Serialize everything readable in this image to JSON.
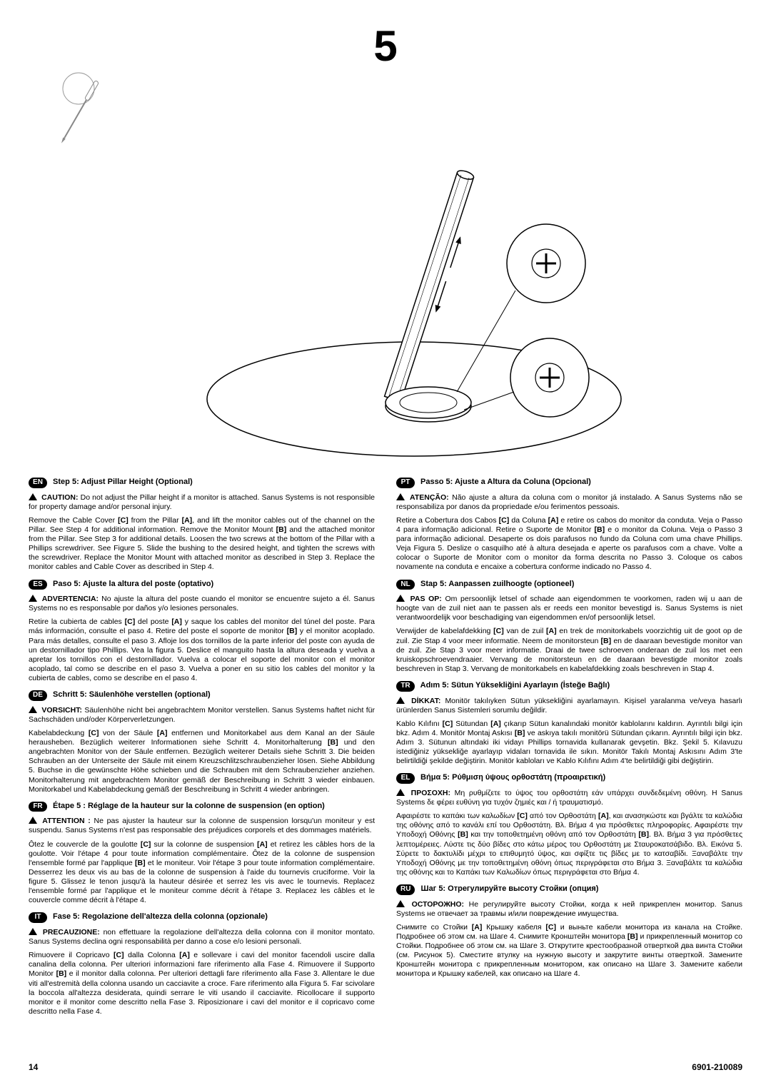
{
  "step_number": "5",
  "footer": {
    "page": "14",
    "doc": "6901-210089"
  },
  "sections": [
    {
      "code": "EN",
      "heading": "Step 5: Adjust Pillar Height (Optional)",
      "warn_label": "CAUTION:",
      "warn_text": "Do not adjust the Pillar height if a monitor is attached. Sanus Systems is not responsible for property damage and/or personal injury.",
      "body": "Remove the Cable Cover [C] from the Pillar [A], and lift the monitor cables out of the channel on the Pillar. See Step 4 for additional information. Remove the Monitor Mount [B] and the attached monitor from the Pillar. See Step 3 for additional details. Loosen the two screws at the bottom of the Pillar with a Phillips screwdriver. See Figure 5. Slide the bushing to the desired height, and tighten the screws with the screwdriver. Replace the Monitor Mount with attached monitor as described in Step 3.  Replace the monitor cables and Cable Cover as described in Step 4."
    },
    {
      "code": "ES",
      "heading": "Paso 5: Ajuste la altura del poste (optativo)",
      "warn_label": "ADVERTENCIA:",
      "warn_text": "No ajuste la altura del poste cuando el monitor se encuentre sujeto a él. Sanus Systems no es responsable por daños y/o lesiones personales.",
      "body": "Retire la cubierta de cables [C] del poste [A] y saque los cables del monitor del túnel del poste. Para más información, consulte el paso 4. Retire del poste el soporte de monitor [B] y el monitor acoplado. Para más detalles, consulte el paso 3. Afloje los dos tornillos de la parte inferior del poste con ayuda de un destornillador tipo Phillips. Vea la figura 5. Deslice el manguito hasta la altura deseada y vuelva a apretar los tornillos con el destornillador. Vuelva a colocar el soporte del monitor con el monitor acoplado, tal como se describe en el paso 3. Vuelva a poner en su sitio los cables del monitor y la cubierta de cables, como se describe en el paso 4."
    },
    {
      "code": "DE",
      "heading": "Schritt 5: Säulenhöhe verstellen (optional)",
      "warn_label": "VORSICHT:",
      "warn_text": "Säulenhöhe nicht bei angebrachtem Monitor verstellen. Sanus Systems haftet nicht für Sachschäden und/oder Körperverletzungen.",
      "body": "Kabelabdeckung [C] von der Säule [A] entfernen und Monitorkabel aus dem Kanal an der Säule herausheben. Bezüglich weiterer Informationen siehe Schritt 4. Monitorhalterung [B] und den angebrachten Monitor von der Säule entfernen. Bezüglich weiterer Details siehe Schritt 3. Die beiden Schrauben an der Unterseite der Säule mit einem Kreuzschlitzschraubenzieher lösen. Siehe Abbildung 5. Buchse in die gewünschte Höhe schieben und die Schrauben mit dem Schraubenzieher anziehen. Monitorhalterung mit angebrachtem Monitor gemäß der Beschreibung in Schritt 3 wieder einbauen. Monitorkabel und Kabelabdeckung gemäß der Beschreibung in Schritt 4 wieder anbringen."
    },
    {
      "code": "FR",
      "heading": "Étape  5 : Réglage de la hauteur sur la colonne de suspension (en option)",
      "warn_label": "ATTENTION :",
      "warn_text": "Ne pas ajuster la hauteur sur la colonne de suspension lorsqu'un moniteur y est suspendu. Sanus Systems n'est pas responsable des préjudices corporels et des dommages matériels.",
      "body": "Ôtez le couvercle de la goulotte [C] sur la colonne de suspension [A] et retirez les câbles hors de la goulotte. Voir l'étape 4 pour toute information complémentaire. Ôtez de la colonne de suspension l'ensemble formé par l'applique [B] et le moniteur. Voir l'étape 3 pour toute information complémentaire. Desserrez les deux vis au bas de la colonne de suspension à l'aide du tournevis cruciforme. Voir la figure 5. Glissez le tenon jusqu'à la hauteur désirée et serrez les vis avec le tournevis. Replacez l'ensemble formé par l'applique et le moniteur comme décrit à l'étape 3. Replacez les câbles et le couvercle comme décrit à l'étape 4."
    },
    {
      "code": "IT",
      "heading": "Fase 5: Regolazione dell'altezza della colonna (opzionale)",
      "warn_label": "PRECAUZIONE:",
      "warn_text": "non effettuare la regolazione dell'altezza della colonna con il monitor montato. Sanus Systems declina ogni responsabilità per danno a cose e/o lesioni personali.",
      "body": "Rimuovere il Copricavo [C] dalla Colonna [A] e sollevare i cavi del monitor facendoli uscire dalla canalina della colonna. Per ulteriori informazioni fare riferimento alla Fase 4. Rimuovere il Supporto Monitor [B] e il monitor dalla colonna. Per ulteriori dettagli fare riferimento alla Fase 3. Allentare le due viti all'estremità della colonna usando un cacciavite a croce. Fare riferimento alla Figura 5. Far scivolare la boccola all'altezza desiderata, quindi serrare le viti usando il cacciavite. Ricollocare il supporto monitor e il monitor come descritto nella Fase 3. Riposizionare i cavi del monitor e il copricavo come descritto nella Fase 4."
    },
    {
      "code": "PT",
      "heading": "Passo 5: Ajuste a Altura da Coluna (Opcional)",
      "warn_label": "ATENÇÃO:",
      "warn_text": "Não ajuste a altura da coluna com o monitor já instalado. A Sanus Systems não se responsabiliza por danos da propriedade e/ou ferimentos pessoais.",
      "body": "Retire a Cobertura dos Cabos [C] da Coluna [A] e retire os cabos do monitor da conduta. Veja o Passo 4 para informação adicional. Retire o Suporte de Monitor [B] e o monitor da Coluna. Veja o Passo 3 para informação adicional. Desaperte os dois parafusos no fundo da Coluna com uma chave Phillips. Veja Figura 5. Deslize o casquilho até à altura desejada e aperte os parafusos com a chave.  Volte a colocar o Suporte de Monitor com o monitor da forma descrita no Passo 3. Coloque os cabos novamente na conduta e encaixe a cobertura conforme indicado no Passo 4."
    },
    {
      "code": "NL",
      "heading": "Stap 5: Aanpassen zuilhoogte (optioneel)",
      "warn_label": "PAS OP:",
      "warn_text": "Om persoonlijk letsel of schade aan eigendommen te voorkomen, raden wij u aan de hoogte van de zuil niet aan te passen als er reeds een monitor bevestigd is. Sanus Systems is niet verantwoordelijk voor beschadiging van eigendommen en/of persoonlijk letsel.",
      "body": "Verwijder de kabelafdekking [C] van de zuil [A] en trek de monitorkabels voorzichtig uit de goot op de zuil. Zie Stap 4 voor meer informatie. Neem de monitorsteun [B] en de daaraan bevestigde monitor van de zuil. Zie Stap 3 voor meer informatie. Draai de twee schroeven onderaan de zuil los met een kruiskopschroevendraaier. Vervang de monitorsteun en de daaraan bevestigde monitor zoals beschreven in Stap 3. Vervang de monitorkabels en kabelafdekking zoals beschreven in Stap 4."
    },
    {
      "code": "TR",
      "heading": "Adım 5: Sütun Yüksekliğini Ayarlayın (İsteğe Bağlı)",
      "warn_label": "DİKKAT:",
      "warn_text": "Monitör takılıyken Sütun yüksekliğini ayarlamayın. Kişisel yaralanma ve/veya hasarlı ürünlerden Sanus Sistemleri sorumlu değildir.",
      "body": "Kablo Kılıfını [C] Sütundan [A] çıkarıp Sütun kanalındaki monitör kablolarını kaldırın.  Ayrıntılı bilgi için bkz. Adım 4. Monitör Montaj Askısı [B] ve askıya takılı monitörü Sütundan çıkarın. Ayrıntılı bilgi için bkz. Adım 3. Sütunun altındaki iki vidayı Phillips tornavida kullanarak gevşetin. Bkz. Şekil 5. Kılavuzu istediğiniz yüksekliğe ayarlayıp vidaları tornavida ile sıkın. Monitör Takılı Montaj Askısını Adım 3'te belirtildiği şekilde değiştirin. Monitör kabloları ve Kablo Kılıfını Adım 4'te belirtildiği gibi değiştirin."
    },
    {
      "code": "EL",
      "heading": "Βήμα 5: Ρύθμιση ύψους ορθοστάτη (προαιρετική)",
      "warn_label": "ΠΡΟΣΟΧΗ:",
      "warn_text": "Μη ρυθμίζετε το ύψος του ορθοστάτη εάν υπάρχει συνδεδεμένη οθόνη. Η Sanus Systems δε φέρει ευθύνη για τυχόν ζημιές και / ή τραυματισμό.",
      "body": "Αφαιρέστε το καπάκι των καλωδίων [C]  από  τον Ορθοστάτη [A], και ανασηκώστε και βγάλτε τα καλώδια της οθόνης από το κανάλι επί του Ορθοστάτη. Βλ. Βήμα 4 για πρόσθετες πληροφορίες. Αφαιρέστε την Υποδοχή Οθόνης [B] και την τοποθετημένη οθόνη από τον Ορθοστάτη [B]. Βλ. Βήμα 3 για πρόσθετες λεπτομέρειες. Λύστε τις δύο βίδες στο κάτω μέρος του Ορθοστάτη με Σταυροκατσάβιδο. Βλ. Εικόνα 5. Σύρετε το δακτυλίδι μέχρι το επιθυμητό ύψος, και σφίξτε τις βίδες με το κατσαβίδι. Ξαναβάλτε την Υποδοχή Οθόνης με την τοποθετημένη οθόνη όπως περιγράφεται στο Βήμα 3. Ξαναβάλτε τα καλώδια της οθόνης και το  Καπάκι των Καλωδίων όπως περιγράφεται στο Βήμα 4."
    },
    {
      "code": "RU",
      "heading": "Шаг 5: Отрегулируйте высоту Стойки (опция)",
      "warn_label": "ОСТОРОЖНО:",
      "warn_text": "Не регулируйте высоту Стойки, когда к ней прикреплен монитор. Sanus Systems не отвечает за травмы и/или повреждение имущества.",
      "body": "Снимите со Стойки [A] Крышку кабеля [C] и выньте кабели монитора из канала на Стойке. Подробнее об этом см. на Шаге 4. Снимите Кронштейн монитора [B] и прикрепленный монитор со Стойки. Подробнее об этом см. на Шаге 3. Открутите крестообразной отверткой два винта Стойки (см. Рисунок 5). Сместите втулку на нужную высоту и закрутите винты отверткой. Замените Кронштейн монитора с прикрепленным монитором, как описано на Шаге 3. Замените кабели монитора и Крышку кабелей, как описано на Шаге 4."
    }
  ]
}
